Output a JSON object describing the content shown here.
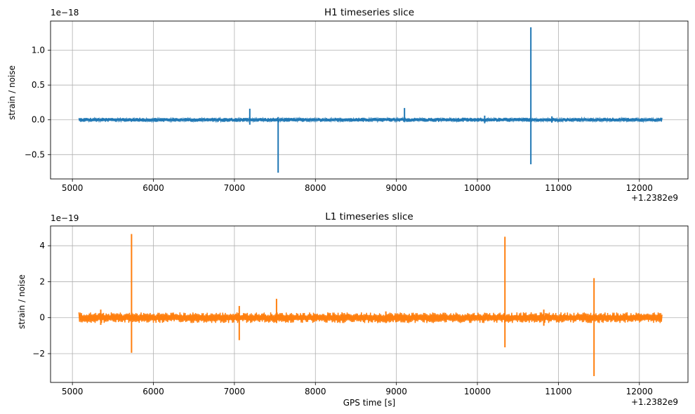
{
  "chart_data": [
    {
      "type": "line",
      "title": "H1 timeseries slice",
      "ylabel": "strain / noise",
      "xlabel": "",
      "x_offset_label": "+1.2382e9",
      "y_scale_label": "1e−18",
      "xlim": [
        4730,
        12600
      ],
      "ylim": [
        -0.85,
        1.42
      ],
      "xticks": [
        5000,
        6000,
        7000,
        8000,
        9000,
        10000,
        11000,
        12000
      ],
      "xtick_labels": [
        "5000",
        "6000",
        "7000",
        "8000",
        "9000",
        "10000",
        "11000",
        "12000"
      ],
      "yticks": [
        -0.5,
        0.0,
        0.5,
        1.0
      ],
      "ytick_labels": [
        "−0.5",
        "0.0",
        "0.5",
        "1.0"
      ],
      "grid": true,
      "color": "#1f77b4",
      "data_range": [
        5080,
        12280
      ],
      "noise_amplitude": 0.03,
      "spikes": [
        {
          "x": 7190,
          "high": 0.16,
          "low": -0.07
        },
        {
          "x": 7540,
          "high": 0.04,
          "low": -0.76
        },
        {
          "x": 9100,
          "high": 0.17,
          "low": -0.03
        },
        {
          "x": 10090,
          "high": 0.06,
          "low": -0.05
        },
        {
          "x": 10660,
          "high": 1.33,
          "low": -0.64
        },
        {
          "x": 10920,
          "high": 0.05,
          "low": -0.04
        }
      ]
    },
    {
      "type": "line",
      "title": "L1 timeseries slice",
      "ylabel": "strain / noise",
      "xlabel": "GPS time [s]",
      "x_offset_label": "+1.2382e9",
      "y_scale_label": "1e−19",
      "xlim": [
        4730,
        12600
      ],
      "ylim": [
        -3.6,
        5.1
      ],
      "xticks": [
        5000,
        6000,
        7000,
        8000,
        9000,
        10000,
        11000,
        12000
      ],
      "xtick_labels": [
        "5000",
        "6000",
        "7000",
        "8000",
        "9000",
        "10000",
        "11000",
        "12000"
      ],
      "yticks": [
        -2,
        0,
        2,
        4
      ],
      "ytick_labels": [
        "−2",
        "0",
        "2",
        "4"
      ],
      "grid": true,
      "color": "#ff7f0e",
      "data_range": [
        5080,
        12280
      ],
      "noise_amplitude": 0.3,
      "spikes": [
        {
          "x": 5350,
          "high": 0.45,
          "low": -0.4
        },
        {
          "x": 5730,
          "high": 4.65,
          "low": -1.95
        },
        {
          "x": 7060,
          "high": 0.65,
          "low": -1.25
        },
        {
          "x": 7520,
          "high": 1.05,
          "low": -0.3
        },
        {
          "x": 8870,
          "high": 0.35,
          "low": -0.3
        },
        {
          "x": 10340,
          "high": 4.5,
          "low": -1.65
        },
        {
          "x": 10820,
          "high": 0.45,
          "low": -0.45
        },
        {
          "x": 11440,
          "high": 2.2,
          "low": -3.25
        }
      ]
    }
  ]
}
